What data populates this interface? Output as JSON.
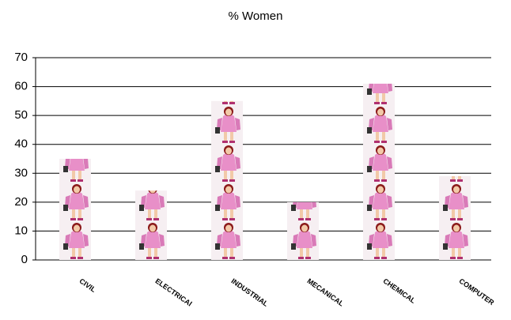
{
  "chart_data": {
    "type": "bar",
    "title": "% Women",
    "categories": [
      "CIVIL",
      "ELECTRICAl",
      "INDUSTRIAL",
      "MECANICAL",
      "CHEMICAL",
      "COMPUTER"
    ],
    "values": [
      35,
      24,
      55,
      20,
      61,
      29
    ],
    "ylim": [
      0,
      70
    ],
    "yticks": [
      0,
      10,
      20,
      30,
      40,
      50,
      60,
      70
    ],
    "grid": true,
    "color": "#e88fc8"
  }
}
